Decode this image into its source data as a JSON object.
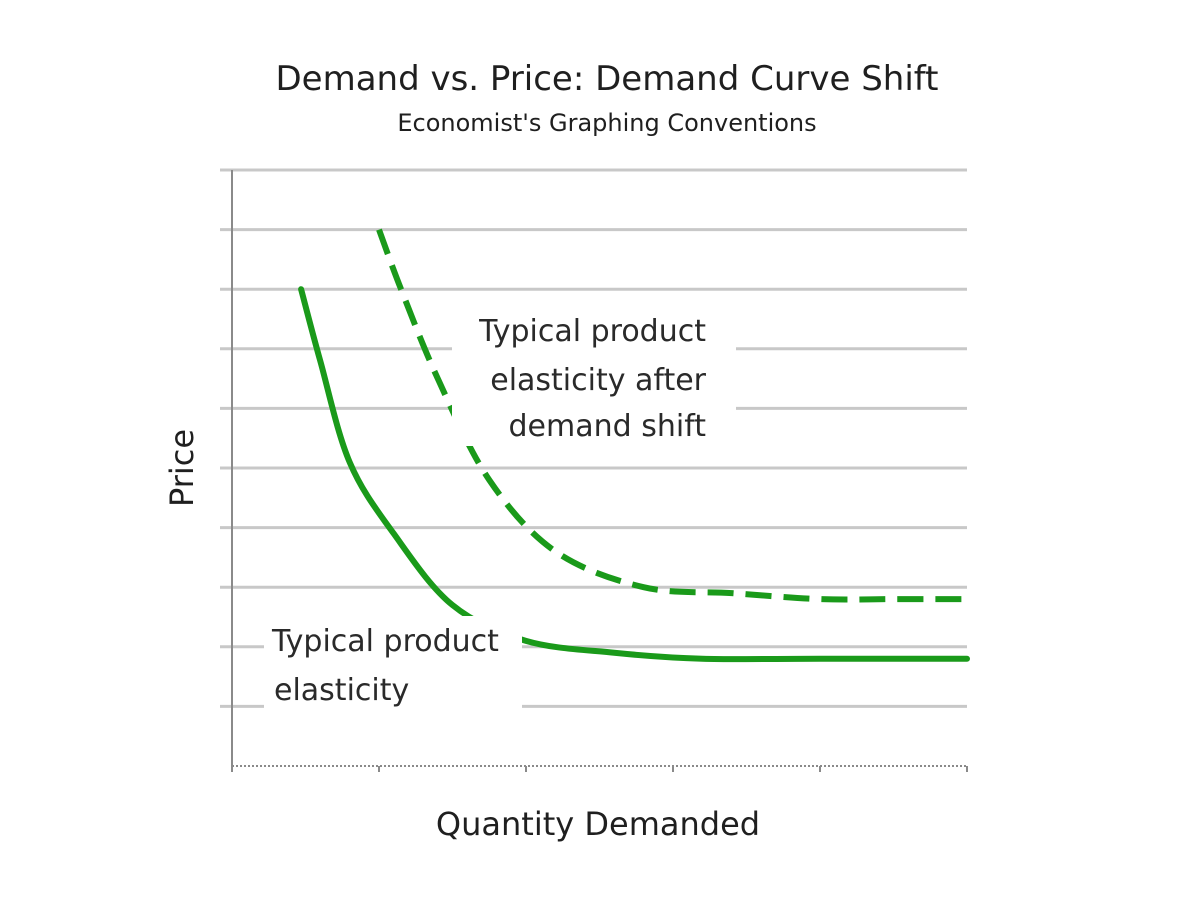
{
  "chart_data": {
    "type": "line",
    "title": "Demand vs. Price: Demand Curve Shift",
    "subtitle": "Economist's Graphing Conventions",
    "xlabel": "Quantity Demanded",
    "ylabel": "Price",
    "xlim": [
      0,
      5
    ],
    "ylim": [
      0,
      10
    ],
    "grid": true,
    "x_tick_count": 5,
    "y_gridline_count": 10,
    "colors": {
      "series": "#1a9a1a",
      "grid": "#c8c8c8",
      "axis": "#8a8a8a",
      "text": "#1f1f1f"
    },
    "series": [
      {
        "style": "solid",
        "x": [
          0.47,
          0.6,
          0.8,
          1.1,
          1.5,
          2.0,
          2.6,
          3.2,
          4.0,
          5.0
        ],
        "y": [
          8.0,
          6.8,
          5.1,
          3.9,
          2.7,
          2.1,
          1.9,
          1.8,
          1.8,
          1.8
        ]
      },
      {
        "style": "dashed",
        "x": [
          1.0,
          1.15,
          1.4,
          1.75,
          2.2,
          2.8,
          3.4,
          4.0,
          4.5,
          5.0
        ],
        "y": [
          9.0,
          8.0,
          6.5,
          4.8,
          3.6,
          3.0,
          2.9,
          2.8,
          2.8,
          2.8
        ]
      }
    ],
    "annotations": [
      {
        "lines": [
          "Typical product",
          "elasticity after",
          "demand shift"
        ],
        "target": "dashed"
      },
      {
        "lines": [
          "Typical product",
          "elasticity"
        ],
        "target": "solid"
      }
    ]
  }
}
